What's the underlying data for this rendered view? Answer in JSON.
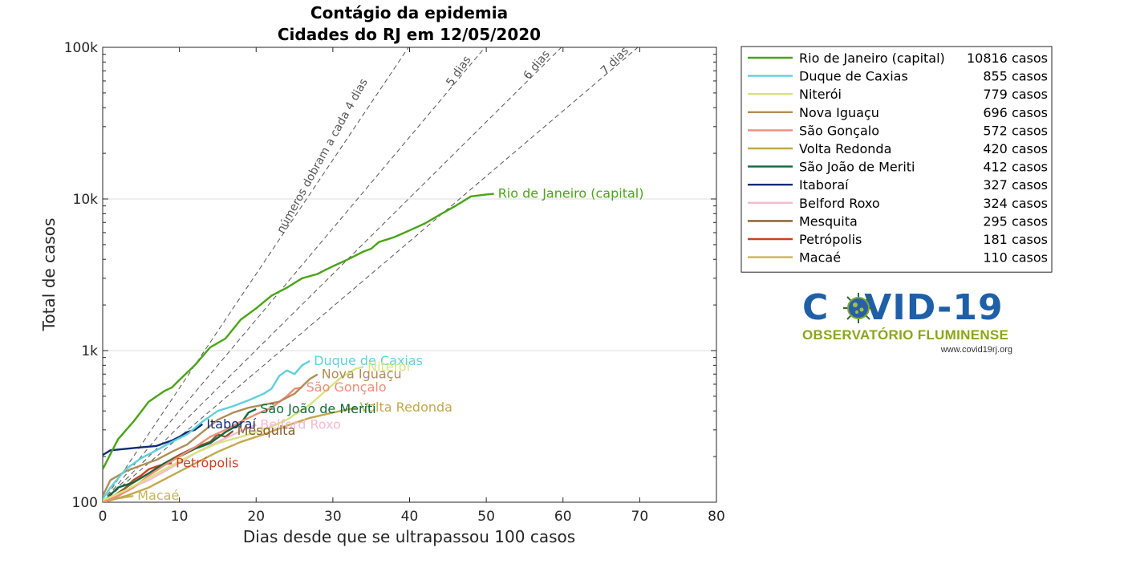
{
  "chart_data": {
    "type": "line",
    "title": "Contágio da epidemia",
    "subtitle": "Cidades do RJ em 12/05/2020",
    "xlabel": "Dias desde que se ultrapassou 100 casos",
    "ylabel": "Total de casos",
    "xlim": [
      0,
      80
    ],
    "ylim": [
      100,
      100000
    ],
    "yscale": "log",
    "grid": "horizontal major",
    "x_ticks": [
      "0",
      "10",
      "20",
      "30",
      "40",
      "50",
      "60",
      "70",
      "80"
    ],
    "y_ticks": [
      "100",
      "1k",
      "10k",
      "100k"
    ],
    "guide_lines": [
      {
        "label": "números dobram a cada 4 dias",
        "doubling_days": 4
      },
      {
        "label": "5 dias",
        "doubling_days": 5
      },
      {
        "label": "6 dias",
        "doubling_days": 6
      },
      {
        "label": "7 dias",
        "doubling_days": 7
      }
    ],
    "legend_position": "outside-right",
    "series": [
      {
        "name": "Rio de Janeiro (capital)",
        "casos": "10816 casos",
        "color": "#4aa416",
        "width": 2.4,
        "x": [
          0,
          2,
          4,
          6,
          8,
          9,
          10,
          12,
          14,
          16,
          18,
          20,
          22,
          24,
          26,
          28,
          29,
          30,
          32,
          34,
          35,
          36,
          38,
          40,
          42,
          44,
          46,
          48,
          50,
          51
        ],
        "y": [
          165,
          260,
          340,
          460,
          540,
          570,
          640,
          800,
          1050,
          1200,
          1600,
          1900,
          2300,
          2600,
          3000,
          3200,
          3400,
          3600,
          4000,
          4500,
          4700,
          5200,
          5600,
          6200,
          6900,
          7900,
          9000,
          10400,
          10700,
          10816
        ]
      },
      {
        "name": "Duque de Caxias",
        "casos": "855 casos",
        "color": "#5fd0dc",
        "width": 2.4,
        "x": [
          0,
          1,
          3,
          5,
          7,
          9,
          11,
          13,
          15,
          17,
          19,
          21,
          22,
          23,
          24,
          25,
          26,
          27
        ],
        "y": [
          105,
          125,
          165,
          195,
          220,
          250,
          280,
          340,
          400,
          430,
          470,
          520,
          560,
          680,
          740,
          700,
          800,
          855
        ]
      },
      {
        "name": "Niterói",
        "casos": "779 casos",
        "color": "#d7e37d",
        "width": 2.4,
        "x": [
          0,
          3,
          6,
          9,
          12,
          15,
          18,
          21,
          24,
          27,
          29,
          31,
          33,
          34
        ],
        "y": [
          103,
          120,
          145,
          175,
          210,
          245,
          270,
          300,
          350,
          440,
          540,
          660,
          760,
          779
        ]
      },
      {
        "name": "Nova Iguaçu",
        "casos": "696 casos",
        "color": "#b08d57",
        "width": 2.4,
        "x": [
          0,
          1,
          3,
          5,
          7,
          9,
          11,
          13,
          15,
          17,
          19,
          21,
          23,
          25,
          27,
          28
        ],
        "y": [
          110,
          140,
          160,
          175,
          190,
          215,
          240,
          290,
          350,
          390,
          420,
          440,
          460,
          520,
          650,
          696
        ]
      },
      {
        "name": "São Gonçalo",
        "casos": "572 casos",
        "color": "#f08c7a",
        "width": 2.4,
        "x": [
          0,
          2,
          4,
          6,
          8,
          10,
          12,
          14,
          16,
          18,
          20,
          22,
          24,
          25,
          26
        ],
        "y": [
          100,
          110,
          125,
          150,
          175,
          200,
          230,
          270,
          300,
          340,
          380,
          420,
          500,
          560,
          572
        ]
      },
      {
        "name": "Volta Redonda",
        "casos": "420 casos",
        "color": "#c2a84b",
        "width": 2.4,
        "x": [
          0,
          3,
          6,
          9,
          12,
          15,
          18,
          21,
          24,
          27,
          30,
          33
        ],
        "y": [
          100,
          110,
          125,
          150,
          180,
          215,
          250,
          280,
          320,
          360,
          390,
          420
        ]
      },
      {
        "name": "São João de Meriti",
        "casos": "412 casos",
        "color": "#10693a",
        "width": 2.4,
        "x": [
          0,
          2,
          4,
          6,
          8,
          10,
          12,
          14,
          16,
          18,
          19,
          20
        ],
        "y": [
          100,
          125,
          135,
          155,
          180,
          200,
          225,
          245,
          290,
          330,
          390,
          412
        ]
      },
      {
        "name": "Itaboraí",
        "casos": "327 casos",
        "color": "#0e2c78",
        "width": 2.4,
        "x": [
          0,
          1,
          3,
          5,
          7,
          8,
          9,
          10,
          11,
          12,
          13
        ],
        "y": [
          205,
          220,
          225,
          230,
          235,
          245,
          255,
          270,
          290,
          300,
          327
        ]
      },
      {
        "name": "Belford Roxo",
        "casos": "324 casos",
        "color": "#f8b9cf",
        "width": 2.4,
        "x": [
          0,
          3,
          6,
          9,
          12,
          15,
          18,
          20
        ],
        "y": [
          100,
          120,
          140,
          170,
          210,
          250,
          295,
          324
        ]
      },
      {
        "name": "Mesquita",
        "casos": "295 casos",
        "color": "#8a5a2b",
        "width": 2.4,
        "x": [
          0,
          2,
          4,
          6,
          8,
          10,
          12,
          14,
          15,
          16,
          17
        ],
        "y": [
          100,
          115,
          135,
          155,
          180,
          205,
          230,
          250,
          280,
          270,
          295
        ]
      },
      {
        "name": "Petrópolis",
        "casos": "181 casos",
        "color": "#cc4022",
        "width": 2.4,
        "x": [
          0,
          1,
          2,
          3,
          4,
          5,
          6,
          7,
          8,
          9
        ],
        "y": [
          100,
          105,
          112,
          125,
          140,
          150,
          165,
          172,
          178,
          181
        ]
      },
      {
        "name": "Macaé",
        "casos": "110 casos",
        "color": "#c8b45a",
        "width": 2.4,
        "x": [
          0,
          1,
          2,
          3,
          4
        ],
        "y": [
          100,
          103,
          106,
          108,
          110
        ]
      }
    ]
  },
  "logo": {
    "title_left": "C",
    "title_right": "VID-19",
    "subtitle": "OBSERVATÓRIO FLUMINENSE",
    "url": "www.covid19rj.org"
  }
}
